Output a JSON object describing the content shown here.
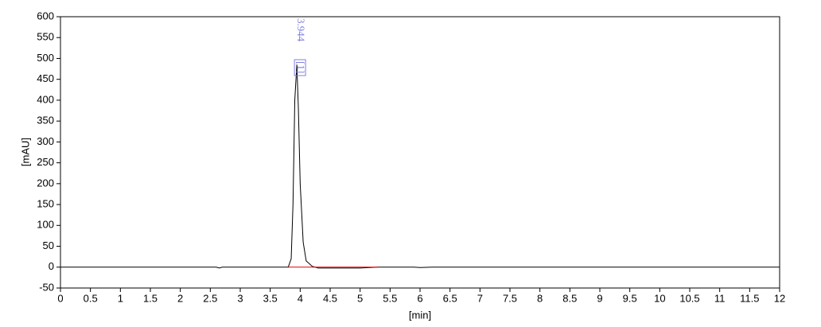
{
  "chart_data": {
    "type": "line",
    "xlabel": "[min]",
    "ylabel": "[mAU]",
    "xlim": [
      0,
      12
    ],
    "ylim": [
      -50,
      600
    ],
    "xticks": [
      0,
      0.5,
      1,
      1.5,
      2,
      2.5,
      3,
      3.5,
      4,
      4.5,
      5,
      5.5,
      6,
      6.5,
      7,
      7.5,
      8,
      8.5,
      9,
      9.5,
      10,
      10.5,
      11,
      11.5,
      12
    ],
    "yticks": [
      -50,
      0,
      50,
      100,
      150,
      200,
      250,
      300,
      350,
      400,
      450,
      500,
      550,
      600
    ],
    "series": [
      {
        "color": "#000000",
        "x": [
          0,
          2.6,
          2.65,
          2.7,
          3.8,
          3.85,
          3.88,
          3.91,
          3.944,
          3.97,
          4.0,
          4.05,
          4.1,
          4.2,
          4.3,
          5.0,
          5.3,
          5.9,
          6.0,
          6.2,
          12
        ],
        "values": [
          0,
          0,
          -2,
          0,
          0,
          20,
          150,
          400,
          485,
          380,
          200,
          60,
          15,
          2,
          -2,
          -2,
          0,
          0,
          -1,
          0,
          0
        ]
      },
      {
        "color": "#e00000",
        "x": [
          3.8,
          5.3
        ],
        "values": [
          0,
          0
        ]
      }
    ],
    "annotations": [
      {
        "x": 3.944,
        "label": "3.944",
        "tag": "[1]"
      }
    ]
  }
}
